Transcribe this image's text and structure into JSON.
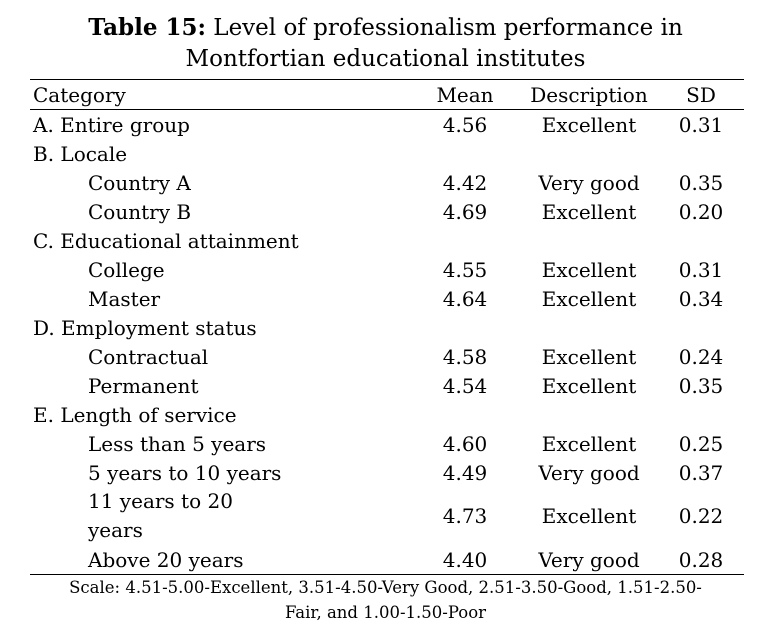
{
  "title": {
    "label": "Table 15:",
    "text_line1": "Level of professionalism performance in",
    "text_line2": "Montfortian educational institutes"
  },
  "table": {
    "headers": [
      "Category",
      "Mean",
      "Description",
      "SD"
    ],
    "rows": [
      {
        "type": "group",
        "category": "A. Entire group",
        "mean": "4.56",
        "description": "Excellent",
        "sd": "0.31"
      },
      {
        "type": "group",
        "category": "B. Locale",
        "mean": "",
        "description": "",
        "sd": ""
      },
      {
        "type": "sub",
        "category": "Country A",
        "mean": "4.42",
        "description": "Very good",
        "sd": "0.35"
      },
      {
        "type": "sub",
        "category": "Country B",
        "mean": "4.69",
        "description": "Excellent",
        "sd": "0.20"
      },
      {
        "type": "group",
        "category": "C. Educational attainment",
        "mean": "",
        "description": "",
        "sd": ""
      },
      {
        "type": "sub",
        "category": "College",
        "mean": "4.55",
        "description": "Excellent",
        "sd": "0.31"
      },
      {
        "type": "sub",
        "category": "Master",
        "mean": "4.64",
        "description": "Excellent",
        "sd": "0.34"
      },
      {
        "type": "group",
        "category": "D. Employment status",
        "mean": "",
        "description": "",
        "sd": ""
      },
      {
        "type": "sub",
        "category": "Contractual",
        "mean": "4.58",
        "description": "Excellent",
        "sd": "0.24"
      },
      {
        "type": "sub",
        "category": "Permanent",
        "mean": "4.54",
        "description": "Excellent",
        "sd": "0.35"
      },
      {
        "type": "group",
        "category": "E. Length of service",
        "mean": "",
        "description": "",
        "sd": ""
      },
      {
        "type": "sub",
        "category": "Less than 5 years",
        "mean": "4.60",
        "description": "Excellent",
        "sd": "0.25"
      },
      {
        "type": "sub",
        "category": "5 years to 10 years",
        "mean": "4.49",
        "description": "Very good",
        "sd": "0.37"
      },
      {
        "type": "sub-tall",
        "category": "11 years to 20 years",
        "mean": "4.73",
        "description": "Excellent",
        "sd": "0.22"
      },
      {
        "type": "sub",
        "category": "Above 20 years",
        "mean": "4.40",
        "description": "Very good",
        "sd": "0.28"
      }
    ]
  },
  "note": {
    "line1": "Scale: 4.51-5.00-Excellent, 3.51-4.50-Very Good, 2.51-3.50-Good, 1.51-2.50-",
    "line2": "Fair, and 1.00-1.50-Poor"
  }
}
